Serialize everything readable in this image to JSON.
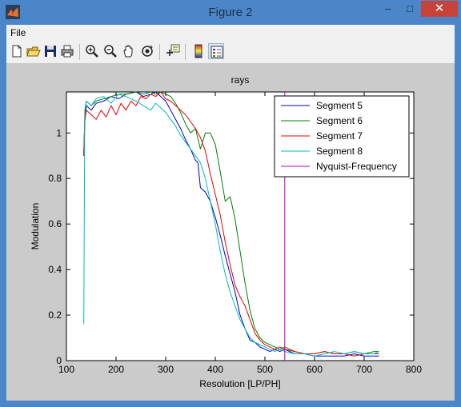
{
  "window": {
    "title": "Figure 2",
    "controls": {
      "minimize": "–",
      "maximize": "□",
      "close": "✕"
    }
  },
  "menu": {
    "items": [
      "File"
    ]
  },
  "toolbar": {
    "buttons": [
      "new-figure-icon",
      "open-file-icon",
      "save-icon",
      "print-icon",
      "zoom-in-icon",
      "zoom-out-icon",
      "pan-icon",
      "rotate-3d-icon",
      "data-cursor-icon",
      "colorbar-icon",
      "legend-icon"
    ]
  },
  "chart_data": {
    "type": "line",
    "title": "rays",
    "xlabel": "Resolution [LP/PH]",
    "ylabel": "Modulation",
    "xlim": [
      100,
      800
    ],
    "ylim": [
      0,
      1.18
    ],
    "xticks": [
      100,
      200,
      300,
      400,
      500,
      600,
      700,
      800
    ],
    "yticks": [
      0,
      0.2,
      0.4,
      0.6,
      0.8,
      1
    ],
    "legend_position": "top-right",
    "series": [
      {
        "name": "Segment 5",
        "color": "#0000cc",
        "x": [
          135,
          137,
          140,
          150,
          160,
          175,
          190,
          205,
          220,
          240,
          255,
          270,
          280,
          290,
          300,
          310,
          320,
          330,
          340,
          350,
          360,
          365,
          370,
          380,
          390,
          400,
          410,
          420,
          430,
          440,
          450,
          460,
          470,
          480,
          490,
          500,
          510,
          520,
          530,
          540,
          560,
          580,
          600,
          620,
          640,
          660,
          680,
          700,
          720,
          730
        ],
        "y": [
          0.9,
          1.05,
          1.12,
          1.1,
          1.13,
          1.14,
          1.16,
          1.15,
          1.17,
          1.18,
          1.16,
          1.17,
          1.18,
          1.16,
          1.14,
          1.1,
          1.06,
          1.02,
          0.97,
          0.93,
          0.88,
          0.87,
          0.76,
          0.74,
          0.7,
          0.63,
          0.55,
          0.46,
          0.38,
          0.3,
          0.2,
          0.14,
          0.09,
          0.08,
          0.06,
          0.05,
          0.04,
          0.05,
          0.04,
          0.05,
          0.03,
          0.03,
          0.02,
          0.02,
          0.02,
          0.02,
          0.03,
          0.02,
          0.02,
          0.02
        ]
      },
      {
        "name": "Segment 6",
        "color": "#008000",
        "x": [
          135,
          137,
          140,
          150,
          160,
          175,
          190,
          205,
          220,
          240,
          255,
          270,
          280,
          290,
          300,
          310,
          320,
          330,
          340,
          350,
          360,
          370,
          380,
          390,
          400,
          410,
          420,
          430,
          440,
          450,
          460,
          470,
          480,
          490,
          500,
          510,
          520,
          530,
          540,
          560,
          580,
          600,
          620,
          640,
          660,
          680,
          700,
          720,
          730
        ],
        "y": [
          0.9,
          1.08,
          1.14,
          1.12,
          1.14,
          1.15,
          1.16,
          1.17,
          1.17,
          1.18,
          1.17,
          1.18,
          1.17,
          1.18,
          1.17,
          1.16,
          1.13,
          1.09,
          1.04,
          1.0,
          1.02,
          0.93,
          1.0,
          1.0,
          0.95,
          0.83,
          0.7,
          0.72,
          0.62,
          0.48,
          0.34,
          0.22,
          0.14,
          0.1,
          0.08,
          0.07,
          0.06,
          0.05,
          0.06,
          0.04,
          0.03,
          0.03,
          0.04,
          0.03,
          0.03,
          0.04,
          0.03,
          0.04,
          0.04
        ]
      },
      {
        "name": "Segment 7",
        "color": "#ee0000",
        "x": [
          135,
          137,
          140,
          150,
          160,
          170,
          180,
          190,
          200,
          210,
          220,
          230,
          240,
          250,
          260,
          270,
          280,
          290,
          300,
          310,
          320,
          330,
          340,
          350,
          360,
          370,
          380,
          390,
          400,
          410,
          420,
          430,
          440,
          450,
          460,
          470,
          480,
          490,
          500,
          510,
          520,
          530,
          540,
          560,
          580,
          600,
          620,
          640,
          660,
          680,
          700,
          720,
          730
        ],
        "y": [
          0.9,
          1.05,
          1.1,
          1.08,
          1.06,
          1.1,
          1.07,
          1.12,
          1.08,
          1.13,
          1.1,
          1.14,
          1.12,
          1.16,
          1.15,
          1.17,
          1.16,
          1.18,
          1.15,
          1.14,
          1.12,
          1.1,
          1.08,
          1.05,
          1.02,
          0.98,
          0.92,
          0.82,
          0.73,
          0.64,
          0.52,
          0.42,
          0.33,
          0.28,
          0.24,
          0.18,
          0.12,
          0.09,
          0.07,
          0.06,
          0.05,
          0.06,
          0.05,
          0.04,
          0.03,
          0.03,
          0.04,
          0.03,
          0.03,
          0.02,
          0.03,
          0.03,
          0.03
        ]
      },
      {
        "name": "Segment 8",
        "color": "#00bbbb",
        "x": [
          135,
          137,
          140,
          150,
          160,
          175,
          190,
          205,
          220,
          240,
          255,
          270,
          280,
          290,
          300,
          310,
          320,
          330,
          340,
          350,
          360,
          370,
          380,
          390,
          400,
          410,
          420,
          430,
          440,
          450,
          460,
          470,
          480,
          490,
          500,
          510,
          520,
          530,
          540,
          560,
          580,
          600,
          620,
          640,
          660,
          680,
          700,
          720,
          730
        ],
        "y": [
          0.16,
          1.1,
          1.14,
          1.12,
          1.15,
          1.16,
          1.13,
          1.17,
          1.16,
          1.14,
          1.12,
          1.1,
          1.13,
          1.11,
          1.09,
          1.06,
          1.03,
          0.99,
          0.96,
          0.93,
          0.9,
          0.87,
          0.8,
          0.7,
          0.6,
          0.48,
          0.38,
          0.3,
          0.24,
          0.18,
          0.14,
          0.1,
          0.08,
          0.07,
          0.06,
          0.05,
          0.04,
          0.05,
          0.04,
          0.03,
          0.03,
          0.02,
          0.03,
          0.04,
          0.03,
          0.04,
          0.03,
          0.03,
          0.04
        ]
      },
      {
        "name": "Nyquist-Frequency",
        "color": "#bb00bb",
        "x": [
          540,
          540
        ],
        "y": [
          0,
          1.18
        ]
      }
    ]
  }
}
